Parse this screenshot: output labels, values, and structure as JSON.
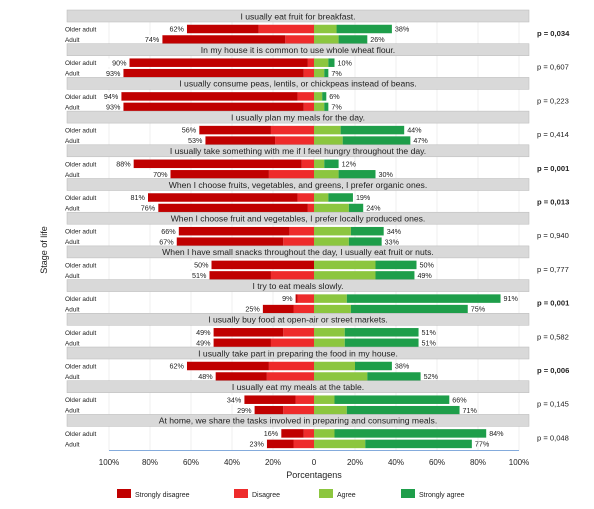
{
  "chart_data": {
    "type": "bar",
    "orientation": "horizontal-diverging-stacked",
    "xlabel": "Porcentagens",
    "ylabel": "Stage of life",
    "x_ticks": [
      "100%",
      "80%",
      "60%",
      "40%",
      "20%",
      "0",
      "20%",
      "40%",
      "60%",
      "80%",
      "100%"
    ],
    "xlim": [
      -100,
      100
    ],
    "series_names": [
      "Strongly disagree",
      "Disagree",
      "Agree",
      "Strongly agree"
    ],
    "colors": [
      "#C00000",
      "#EE2B2B",
      "#8CC63F",
      "#1E9E4A"
    ],
    "groups": [
      {
        "title": "I usually eat fruit for breakfast.",
        "p_value": "p = 0,034",
        "significant": true,
        "rows": [
          {
            "label": "Older adult",
            "values": [
              -35,
              -27,
              11,
              27
            ],
            "disagree_label": "62%",
            "agree_label": "38%"
          },
          {
            "label": "Adult",
            "values": [
              -60,
              -14,
              12,
              14
            ],
            "disagree_label": "74%",
            "agree_label": "26%"
          }
        ]
      },
      {
        "title": "In my house it is common to use whole wheat flour.",
        "p_value": "p = 0,607",
        "significant": false,
        "rows": [
          {
            "label": "Older adult",
            "values": [
              -87,
              -3,
              7,
              3
            ],
            "disagree_label": "90%",
            "agree_label": "10%"
          },
          {
            "label": "Adult",
            "values": [
              -88,
              -5,
              5,
              2
            ],
            "disagree_label": "93%",
            "agree_label": "7%"
          }
        ]
      },
      {
        "title": "I usually consume peas, lentils, or chickpeas instead of beans.",
        "p_value": "p = 0,223",
        "significant": false,
        "rows": [
          {
            "label": "Older adult",
            "values": [
              -86,
              -8,
              4,
              2
            ],
            "disagree_label": "94%",
            "agree_label": "6%"
          },
          {
            "label": "Adult",
            "values": [
              -88,
              -5,
              5,
              2
            ],
            "disagree_label": "93%",
            "agree_label": "7%"
          }
        ]
      },
      {
        "title": "I usually plan my meals for the day.",
        "p_value": "p = 0,414",
        "significant": false,
        "rows": [
          {
            "label": "Older adult",
            "values": [
              -35,
              -21,
              13,
              31
            ],
            "disagree_label": "56%",
            "agree_label": "44%"
          },
          {
            "label": "Adult",
            "values": [
              -34,
              -19,
              14,
              33
            ],
            "disagree_label": "53%",
            "agree_label": "47%"
          }
        ]
      },
      {
        "title": "I usually take something with me if I feel hungry throughout the day.",
        "p_value": "p = 0,001",
        "significant": true,
        "rows": [
          {
            "label": "Older adult",
            "values": [
              -82,
              -6,
              5,
              7
            ],
            "disagree_label": "88%",
            "agree_label": "12%"
          },
          {
            "label": "Adult",
            "values": [
              -48,
              -22,
              12,
              18
            ],
            "disagree_label": "70%",
            "agree_label": "30%"
          }
        ]
      },
      {
        "title": "When I choose fruits, vegetables, and greens, I prefer organic ones.",
        "p_value": "p = 0,013",
        "significant": true,
        "rows": [
          {
            "label": "Older adult",
            "values": [
              -73,
              -8,
              7,
              12
            ],
            "disagree_label": "81%",
            "agree_label": "19%"
          },
          {
            "label": "Adult",
            "values": [
              -73,
              -3,
              17,
              7
            ],
            "disagree_label": "76%",
            "agree_label": "24%"
          }
        ]
      },
      {
        "title": "When I choose fruit and vegetables, I prefer locally produced ones.",
        "p_value": "p = 0,940",
        "significant": false,
        "rows": [
          {
            "label": "Older adult",
            "values": [
              -54,
              -12,
              18,
              16
            ],
            "disagree_label": "66%",
            "agree_label": "34%"
          },
          {
            "label": "Adult",
            "values": [
              -52,
              -15,
              17,
              16
            ],
            "disagree_label": "67%",
            "agree_label": "33%"
          }
        ]
      },
      {
        "title": "When I have small snacks throughout the day, I usually eat fruit or nuts.",
        "p_value": "p = 0,777",
        "significant": false,
        "rows": [
          {
            "label": "Older adult",
            "values": [
              -50,
              0,
              30,
              20
            ],
            "disagree_label": "50%",
            "agree_label": "50%"
          },
          {
            "label": "Adult",
            "values": [
              -30,
              -21,
              30,
              19
            ],
            "disagree_label": "51%",
            "agree_label": "49%"
          }
        ]
      },
      {
        "title": "I try to eat meals slowly.",
        "p_value": "p = 0,001",
        "significant": true,
        "rows": [
          {
            "label": "Older adult",
            "values": [
              -1,
              -8,
              16,
              75
            ],
            "disagree_label": "9%",
            "agree_label": "91%"
          },
          {
            "label": "Adult",
            "values": [
              -15,
              -10,
              18,
              57
            ],
            "disagree_label": "25%",
            "agree_label": "75%"
          }
        ]
      },
      {
        "title": "I usually buy food at open-air or street markets.",
        "p_value": "p = 0,582",
        "significant": false,
        "rows": [
          {
            "label": "Older adult",
            "values": [
              -34,
              -15,
              15,
              36
            ],
            "disagree_label": "49%",
            "agree_label": "51%"
          },
          {
            "label": "Adult",
            "values": [
              -28,
              -21,
              15,
              36
            ],
            "disagree_label": "49%",
            "agree_label": "51%"
          }
        ]
      },
      {
        "title": "I usually take part in preparing the food in my house.",
        "p_value": "p = 0,006",
        "significant": true,
        "rows": [
          {
            "label": "Older adult",
            "values": [
              -40,
              -22,
              20,
              18
            ],
            "disagree_label": "62%",
            "agree_label": "38%"
          },
          {
            "label": "Adult",
            "values": [
              -25,
              -23,
              26,
              26
            ],
            "disagree_label": "48%",
            "agree_label": "52%"
          }
        ]
      },
      {
        "title": "I usually eat my meals at the table.",
        "p_value": "p = 0,145",
        "significant": false,
        "rows": [
          {
            "label": "Older adult",
            "values": [
              -25,
              -9,
              10,
              56
            ],
            "disagree_label": "34%",
            "agree_label": "66%"
          },
          {
            "label": "Adult",
            "values": [
              -14,
              -15,
              16,
              55
            ],
            "disagree_label": "29%",
            "agree_label": "71%"
          }
        ]
      },
      {
        "title": "At home, we share the tasks involved in preparing and consuming meals.",
        "p_value": "p = 0,048",
        "significant": false,
        "rows": [
          {
            "label": "Older adult",
            "values": [
              -11,
              -5,
              10,
              74
            ],
            "disagree_label": "16%",
            "agree_label": "84%"
          },
          {
            "label": "Adult",
            "values": [
              -13,
              -10,
              25,
              52
            ],
            "disagree_label": "23%",
            "agree_label": "77%"
          }
        ]
      }
    ]
  }
}
